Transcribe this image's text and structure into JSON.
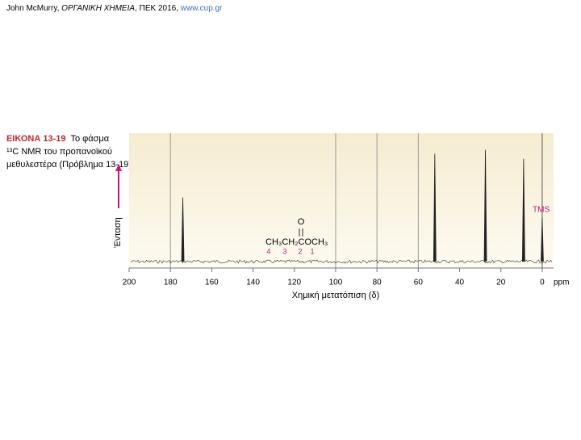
{
  "header": {
    "parts": [
      "John McMurry, ",
      "ΟΡΓΑΝΙΚΗ ΧΗΜΕΙΑ",
      ", ΠΕΚ 2016, ",
      "www.cup.gr"
    ]
  },
  "caption": {
    "label": "ΕΙΚΟΝΑ 13-19",
    "lines": [
      "Το φάσμα",
      "¹³C NMR του προπανοϊκού",
      "μεθυλεστέρα (Πρόβλημα 13-19)."
    ]
  },
  "chart_data": {
    "type": "spectrum",
    "x_label": "Χημική μετατόπιση (δ)",
    "x_unit": "ppm",
    "y_label": "Ένταση",
    "x": [
      174,
      52,
      27.5,
      9,
      0
    ],
    "values": [
      50,
      84,
      87,
      80,
      34
    ],
    "xlim": [
      200,
      -5.5
    ],
    "ylim": [
      0,
      100
    ],
    "xticks": [
      200,
      180,
      160,
      140,
      120,
      100,
      80,
      60,
      40,
      20,
      0
    ],
    "grid_at": [
      180,
      100,
      80,
      60,
      0
    ],
    "color": "#222222",
    "annotations": {
      "tms": "TMS",
      "oxygen": "O",
      "formula": "CH₃CH₂COCH₃",
      "numbers": [
        "4",
        "3",
        "2",
        "1"
      ]
    }
  }
}
